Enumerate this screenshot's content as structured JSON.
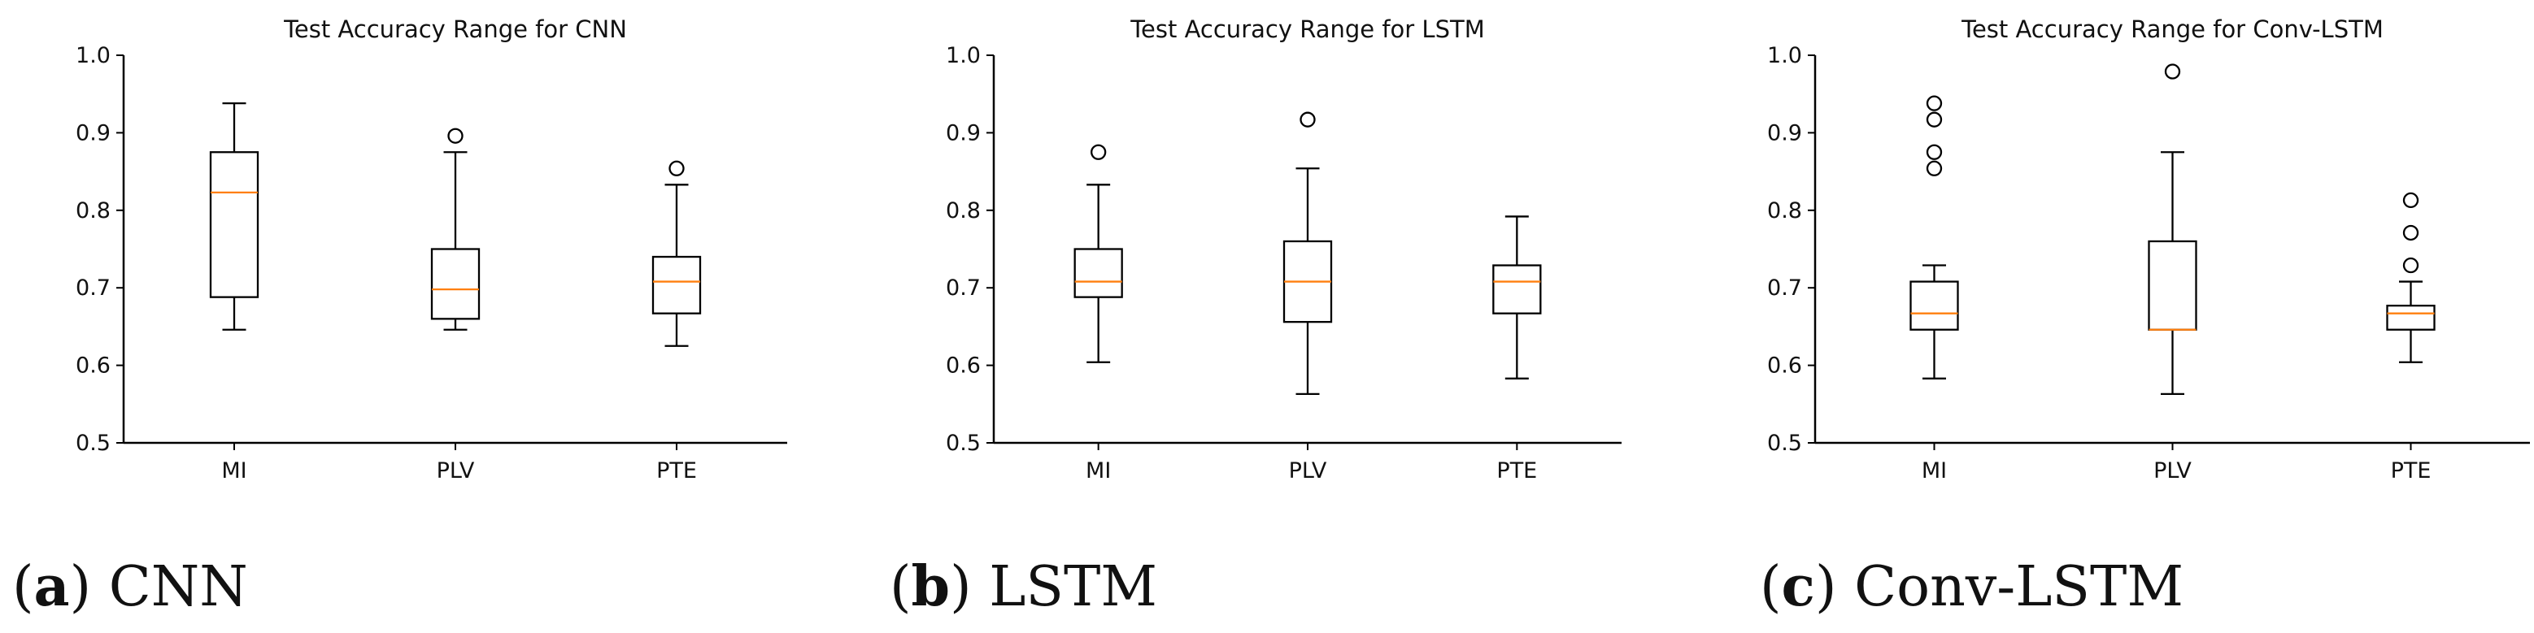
{
  "colors": {
    "box": "#000000",
    "median": "#ff7f0e",
    "background": "#ffffff"
  },
  "chart_data": [
    {
      "type": "box",
      "title": "Test Accuracy Range for CNN",
      "caption_letter": "a",
      "caption_text": "CNN",
      "categories": [
        "MI",
        "PLV",
        "PTE"
      ],
      "ylim": [
        0.5,
        1.0
      ],
      "yticks": [
        "0.5",
        "0.6",
        "0.7",
        "0.8",
        "0.9",
        "1.0"
      ],
      "boxes": [
        {
          "whislo": 0.646,
          "q1": 0.688,
          "med": 0.823,
          "q3": 0.875,
          "whishi": 0.938,
          "fliers": []
        },
        {
          "whislo": 0.646,
          "q1": 0.66,
          "med": 0.698,
          "q3": 0.75,
          "whishi": 0.875,
          "fliers": [
            0.896
          ]
        },
        {
          "whislo": 0.625,
          "q1": 0.667,
          "med": 0.708,
          "q3": 0.74,
          "whishi": 0.833,
          "fliers": [
            0.854
          ]
        }
      ]
    },
    {
      "type": "box",
      "title": "Test Accuracy Range for LSTM",
      "caption_letter": "b",
      "caption_text": "LSTM",
      "categories": [
        "MI",
        "PLV",
        "PTE"
      ],
      "ylim": [
        0.5,
        1.0
      ],
      "yticks": [
        "0.5",
        "0.6",
        "0.7",
        "0.8",
        "0.9",
        "1.0"
      ],
      "boxes": [
        {
          "whislo": 0.604,
          "q1": 0.688,
          "med": 0.708,
          "q3": 0.75,
          "whishi": 0.833,
          "fliers": [
            0.875
          ]
        },
        {
          "whislo": 0.563,
          "q1": 0.656,
          "med": 0.708,
          "q3": 0.76,
          "whishi": 0.854,
          "fliers": [
            0.917
          ]
        },
        {
          "whislo": 0.583,
          "q1": 0.667,
          "med": 0.708,
          "q3": 0.729,
          "whishi": 0.792,
          "fliers": []
        }
      ]
    },
    {
      "type": "box",
      "title": "Test Accuracy Range for Conv-LSTM",
      "caption_letter": "c",
      "caption_text": "Conv-LSTM",
      "categories": [
        "MI",
        "PLV",
        "PTE"
      ],
      "ylim": [
        0.5,
        1.0
      ],
      "yticks": [
        "0.5",
        "0.6",
        "0.7",
        "0.8",
        "0.9",
        "1.0"
      ],
      "boxes": [
        {
          "whislo": 0.583,
          "q1": 0.646,
          "med": 0.667,
          "q3": 0.708,
          "whishi": 0.729,
          "fliers": [
            0.854,
            0.875,
            0.917,
            0.938
          ]
        },
        {
          "whislo": 0.563,
          "q1": 0.646,
          "med": 0.646,
          "q3": 0.76,
          "whishi": 0.875,
          "fliers": [
            0.979
          ]
        },
        {
          "whislo": 0.604,
          "q1": 0.646,
          "med": 0.667,
          "q3": 0.677,
          "whishi": 0.708,
          "fliers": [
            0.729,
            0.771,
            0.813
          ]
        }
      ]
    }
  ]
}
